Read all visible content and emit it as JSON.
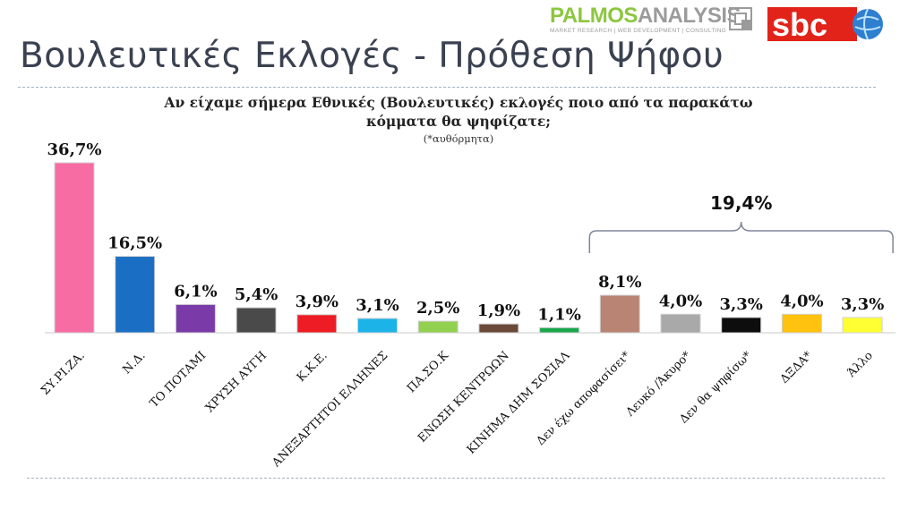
{
  "slide": {
    "title": "Βουλευτικές Εκλογές - Πρόθεση Ψήφου",
    "question_line1": "Αν είχαμε σήμερα Εθνικές (Βουλευτικές) εκλογές ποιο από τα παρακάτω",
    "question_line2": "κόμματα θα ψηφίζατε;",
    "note": "(*αυθόρμητα)"
  },
  "logos": {
    "palmos_part1": "PALMOS",
    "palmos_part2": "ANALYSIS",
    "palmos_tagline": "MARKET RESEARCH | WEB DEVELOPMENT | CONSULTING",
    "sbc": "sbc"
  },
  "chart_data": {
    "type": "bar",
    "categories": [
      "ΣΥ.ΡΙ.ΖΑ.",
      "Ν.Δ.",
      "ΤΟ ΠΟΤΑΜΙ",
      "ΧΡΥΣΗ ΑΥΓΗ",
      "Κ.Κ.Ε.",
      "ΑΝΕΞΑΡΤΗΤΟΙ ΕΛΛΗΝΕΣ",
      "ΠΑ.ΣΟ.Κ",
      "ΕΝΩΣΗ ΚΕΝΤΡΩΩΝ",
      "ΚΙΝΗΜΑ ΔΗΜ ΣΟΣΙΑΛ",
      "Δεν έχω αποφασίσει*",
      "Λευκό /Άκυρο*",
      "Δεν θα ψηφίσω*",
      "ΔΞΔΑ*",
      "Άλλο"
    ],
    "values": [
      36.7,
      16.5,
      6.1,
      5.4,
      3.9,
      3.1,
      2.5,
      1.9,
      1.1,
      8.1,
      4.0,
      3.3,
      4.0,
      3.3
    ],
    "value_labels": [
      "36,7%",
      "16,5%",
      "6,1%",
      "5,4%",
      "3,9%",
      "3,1%",
      "2,5%",
      "1,9%",
      "1,1%",
      "8,1%",
      "4,0%",
      "3,3%",
      "4,0%",
      "3,3%"
    ],
    "colors": [
      "#f76ca3",
      "#1a6fc4",
      "#7a3aa8",
      "#4a4a4a",
      "#ee1c25",
      "#1cb3e8",
      "#92d050",
      "#6b4a3a",
      "#1aa84c",
      "#b98474",
      "#a9a9a9",
      "#0d0d0d",
      "#ffc20e",
      "#ffff33"
    ],
    "ylim": [
      0,
      40
    ],
    "grid": false,
    "legend": "none",
    "annotation": {
      "label": "19,4%",
      "from_category": "Δεν έχω αποφασίσει*",
      "to_category": "Άλλο"
    }
  }
}
